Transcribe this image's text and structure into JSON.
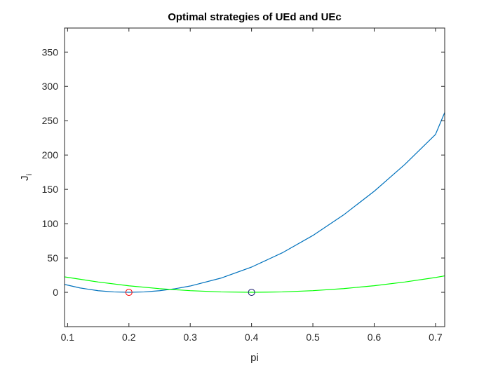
{
  "chart_data": {
    "type": "line",
    "title": "Optimal strategies of UEd and UEc",
    "xlabel": "pi",
    "ylabel": "J",
    "ylabel_subscript": "i",
    "xlim": [
      0.095,
      0.715
    ],
    "ylim": [
      -50,
      385
    ],
    "xticks": [
      0.1,
      0.2,
      0.3,
      0.4,
      0.5,
      0.6,
      0.7
    ],
    "yticks": [
      0,
      50,
      100,
      150,
      200,
      250,
      300,
      350
    ],
    "xtick_labels": [
      "0.1",
      "0.2",
      "0.3",
      "0.4",
      "0.5",
      "0.6",
      "0.7"
    ],
    "ytick_labels": [
      "0",
      "50",
      "100",
      "150",
      "200",
      "250",
      "300",
      "350"
    ],
    "grid": false,
    "series": [
      {
        "color": "#0072bd",
        "x": [
          0.095,
          0.12,
          0.15,
          0.175,
          0.2,
          0.225,
          0.25,
          0.275,
          0.3,
          0.35,
          0.4,
          0.45,
          0.5,
          0.55,
          0.6,
          0.65,
          0.7,
          0.715
        ],
        "y": [
          11.5,
          6.4,
          2.3,
          0.6,
          0.0,
          0.6,
          2.3,
          5.2,
          9.2,
          20.7,
          36.8,
          57.5,
          82.8,
          112.7,
          147.2,
          186.3,
          230.0,
          262.0
        ]
      },
      {
        "color": "#00ff00",
        "x": [
          0.095,
          0.15,
          0.2,
          0.25,
          0.3,
          0.35,
          0.4,
          0.45,
          0.5,
          0.55,
          0.6,
          0.65,
          0.7,
          0.715
        ],
        "y": [
          22.5,
          15.0,
          9.5,
          5.3,
          2.4,
          0.6,
          0.0,
          0.6,
          2.4,
          5.4,
          9.6,
          15.0,
          21.6,
          24.0
        ]
      }
    ],
    "markers": [
      {
        "x": 0.2,
        "y": 0,
        "color": "#ff0000"
      },
      {
        "x": 0.4,
        "y": 0,
        "color": "#1a1a6e"
      }
    ]
  }
}
